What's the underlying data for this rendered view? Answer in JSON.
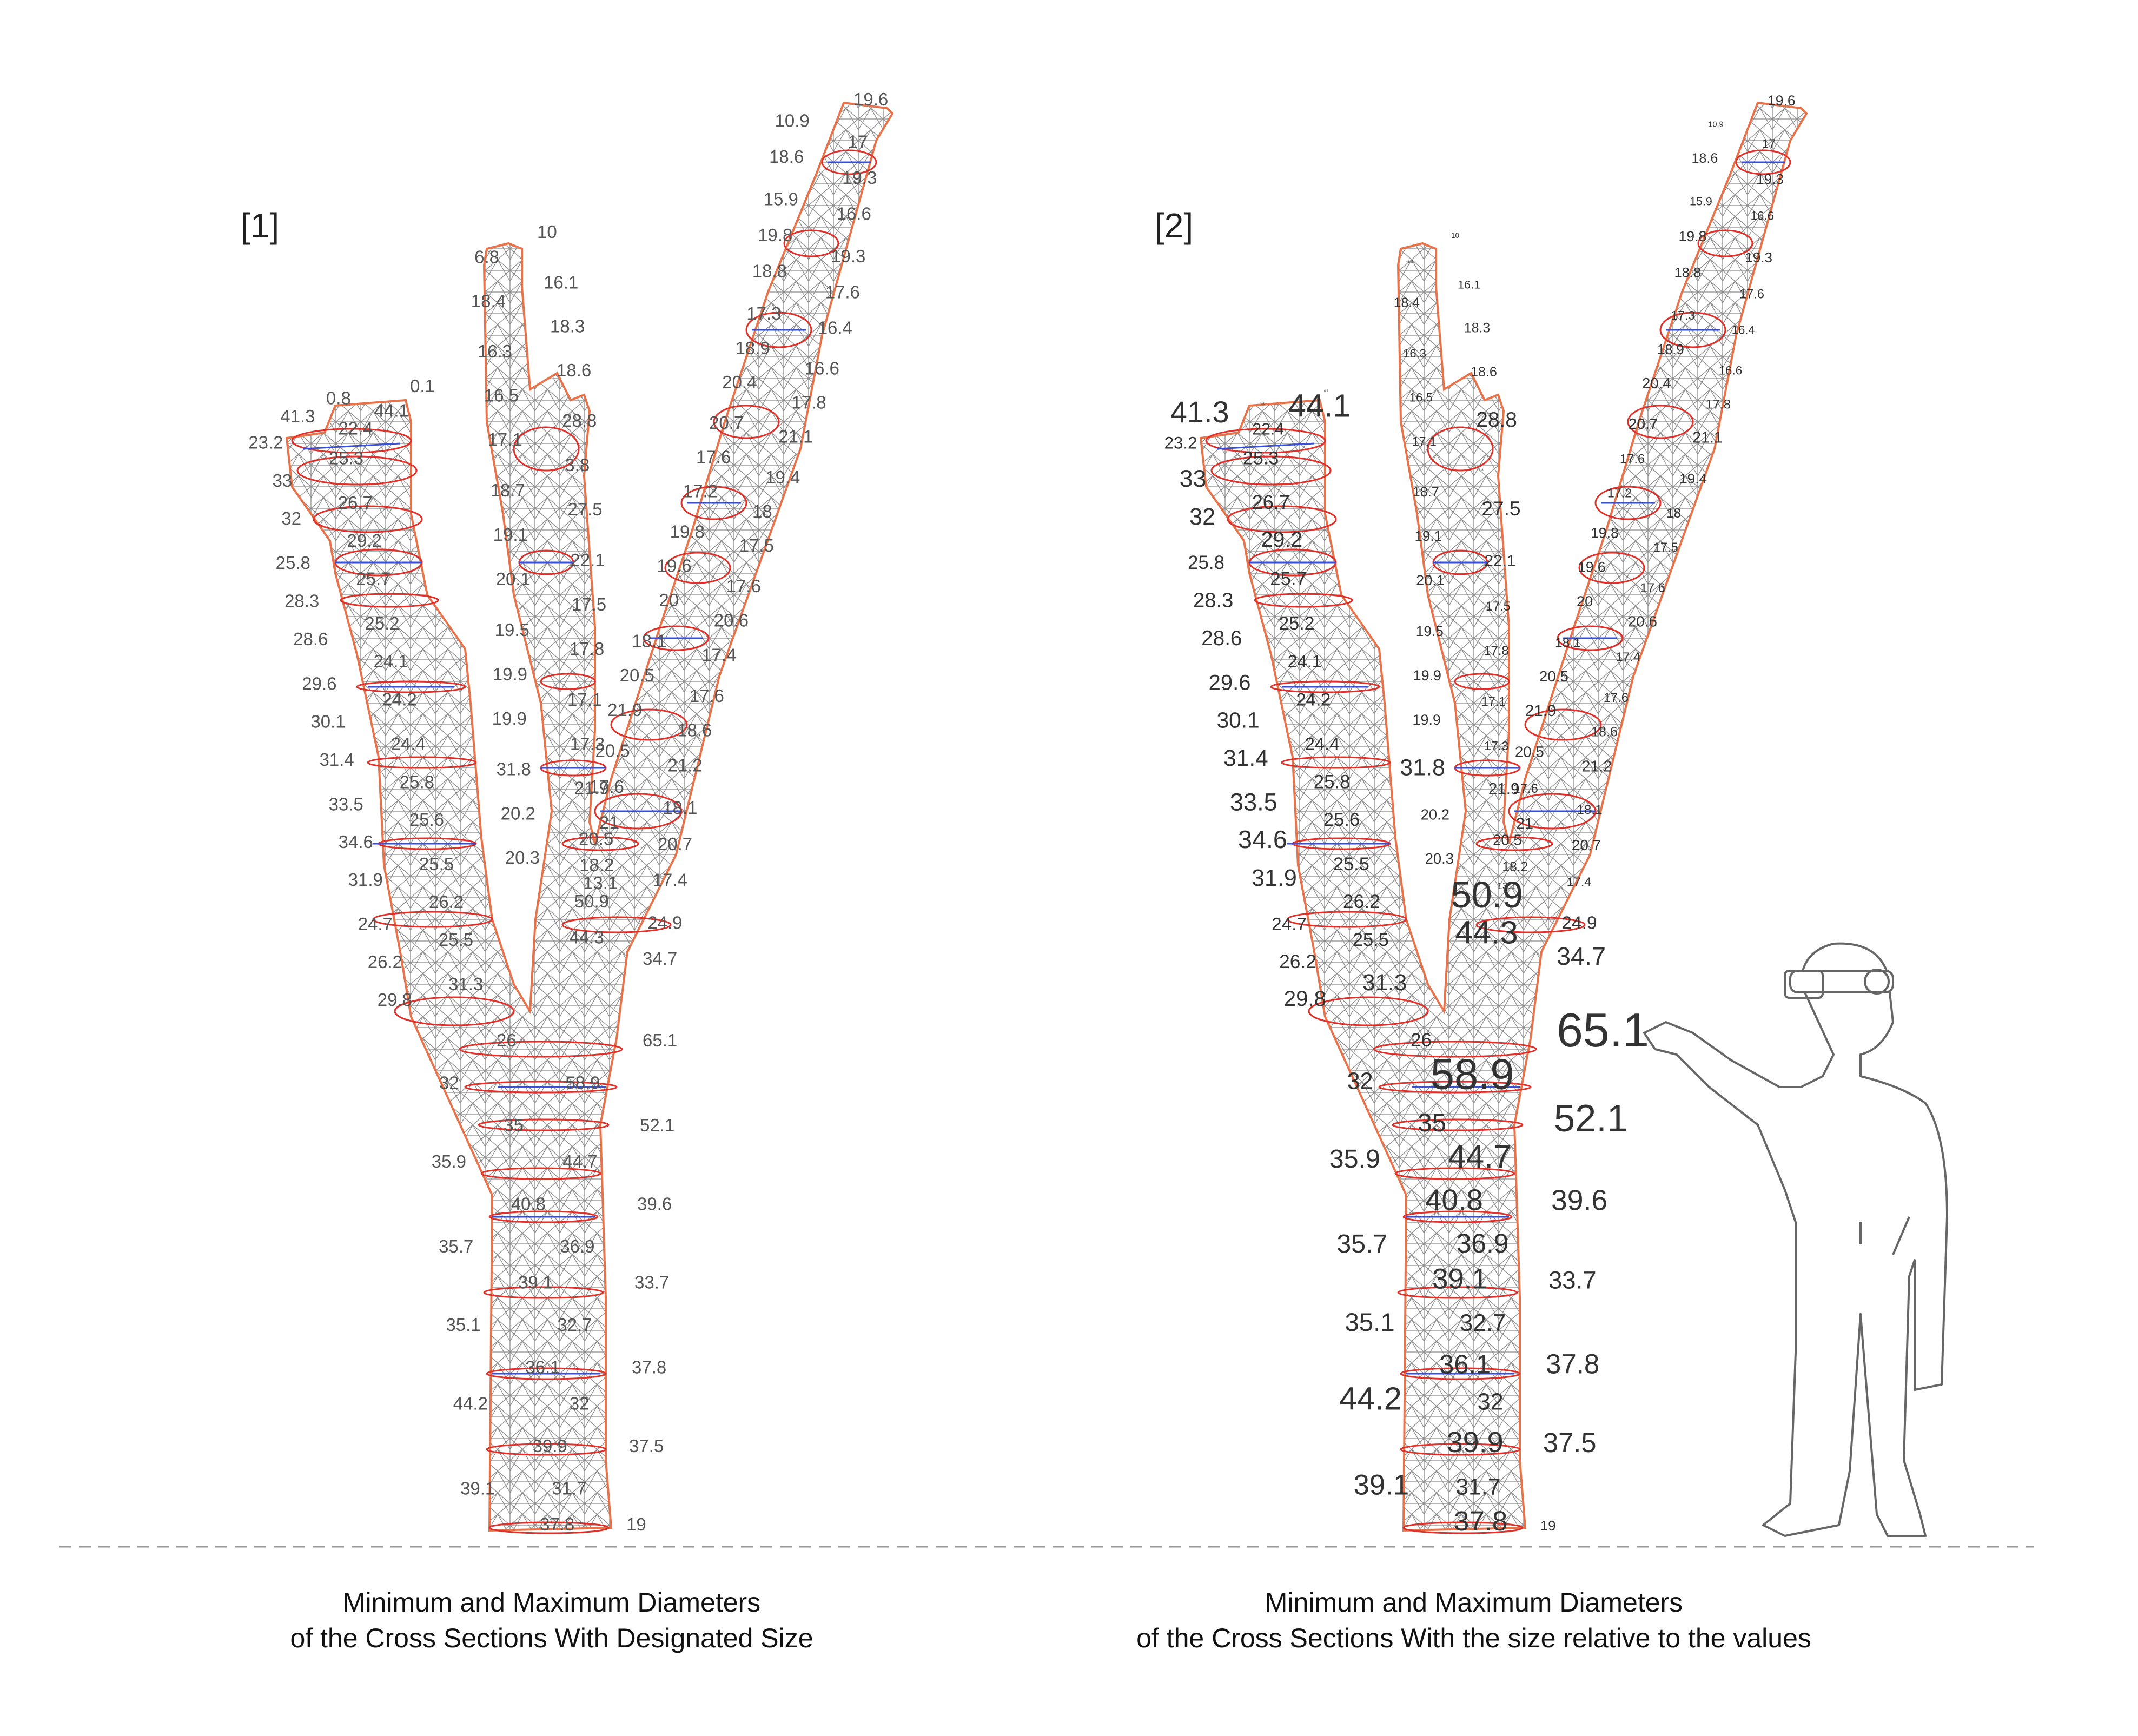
{
  "panels": [
    {
      "tag": "[1]",
      "caption_line1": "Minimum and Maximum Diameters",
      "caption_line2": "of the Cross Sections With Designated Size",
      "label_sizing": "fixed"
    },
    {
      "tag": "[2]",
      "caption_line1": "Minimum and Maximum Diameters",
      "caption_line2": "of the Cross Sections With the size relative to the values",
      "label_sizing": "relative"
    }
  ],
  "colors": {
    "mesh": "#8a8a8a",
    "outline": "#e8734a",
    "max_ellipse": "#e0302a",
    "min_axis": "#3a4fd8",
    "ground_line": "#999999",
    "figure": "#666666"
  },
  "values": {
    "trunk_left": [
      "26",
      "32",
      "35",
      "35.9",
      "40.8",
      "35.7",
      "39.1",
      "35.1",
      "36.1",
      "44.2",
      "39.9",
      "39.1",
      "37.8"
    ],
    "trunk_right": [
      "65.1",
      "58.9",
      "52.1",
      "44.7",
      "39.6",
      "36.9",
      "33.7",
      "32.7",
      "37.8",
      "32",
      "37.5",
      "31.7",
      "19"
    ],
    "left_branch": [
      "0.1",
      "0.8",
      "44.1",
      "41.3",
      "22.4",
      "23.2",
      "25.3",
      "33",
      "26.7",
      "32",
      "29.2",
      "25.8",
      "25.7",
      "28.3",
      "25.2",
      "28.6",
      "24.1",
      "29.6",
      "24.2",
      "30.1",
      "24.4",
      "31.4",
      "25.8",
      "33.5",
      "25.6",
      "34.6",
      "25.5",
      "31.9",
      "26.2",
      "24.7",
      "25.5",
      "26.2",
      "31.3",
      "29.8"
    ],
    "middle_branch": [
      "10",
      "6.8",
      "16.1",
      "18.4",
      "18.3",
      "16.3",
      "18.6",
      "16.5",
      "28.8",
      "17.1",
      "3.8",
      "18.7",
      "27.5",
      "19.1",
      "22.1",
      "20.1",
      "17.5",
      "19.5",
      "17.8",
      "19.9",
      "17.1",
      "19.9",
      "17.3",
      "31.8",
      "21.9",
      "20.2",
      "20.5",
      "20.3",
      "13.1"
    ],
    "right_branch": [
      "19.6",
      "10.9",
      "17",
      "18.6",
      "19.3",
      "15.9",
      "16.6",
      "19.8",
      "19.3",
      "18.8",
      "17.6",
      "17.3",
      "16.4",
      "18.9",
      "16.6",
      "20.4",
      "17.8",
      "20.7",
      "21.1",
      "17.6",
      "19.4",
      "17.2",
      "18",
      "19.8",
      "17.5",
      "19.6",
      "17.6",
      "20",
      "20.6",
      "18.1",
      "17.4",
      "20.5",
      "17.6",
      "21.9",
      "18.6",
      "20.5",
      "21.2",
      "17.6",
      "18.1",
      "21",
      "20.7",
      "18.2",
      "17.4",
      "50.9",
      "24.9",
      "44.3",
      "34.7"
    ]
  }
}
